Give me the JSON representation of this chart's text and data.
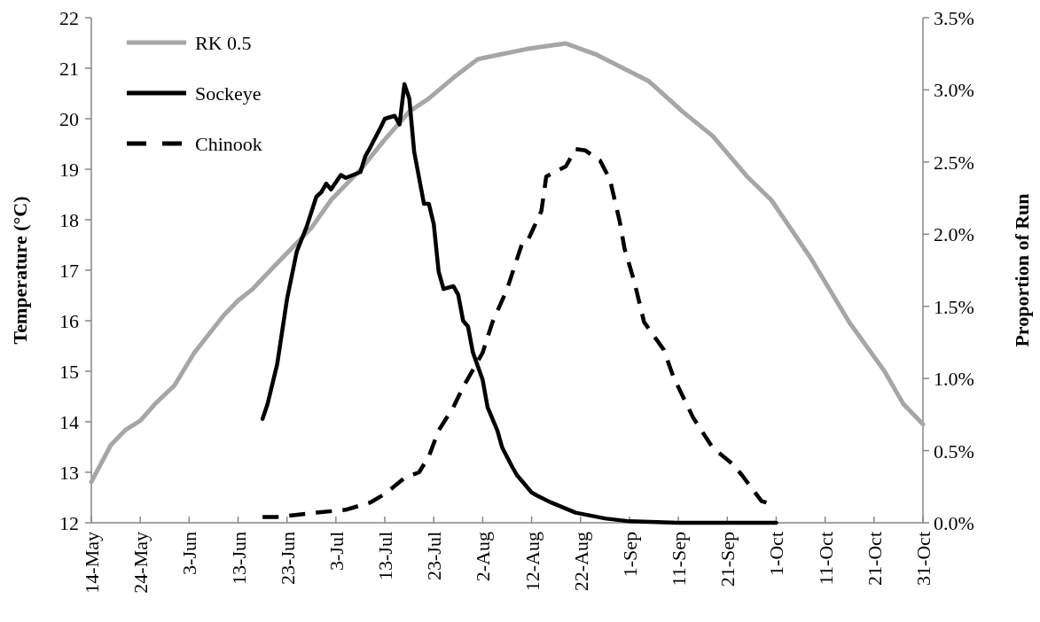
{
  "chart_data": {
    "type": "line",
    "ylabel": "Temperature (°C)",
    "y2label": "Proportion of Run",
    "xlim": [
      "--05-14",
      "--10-31"
    ],
    "xticks": [
      {
        "value": "--05-14",
        "label": "14-May"
      },
      {
        "value": "--05-24",
        "label": "24-May"
      },
      {
        "value": "--06-03",
        "label": "3-Jun"
      },
      {
        "value": "--06-13",
        "label": "13-Jun"
      },
      {
        "value": "--06-23",
        "label": "23-Jun"
      },
      {
        "value": "--07-03",
        "label": "3-Jul"
      },
      {
        "value": "--07-13",
        "label": "13-Jul"
      },
      {
        "value": "--07-23",
        "label": "23-Jul"
      },
      {
        "value": "--08-02",
        "label": "2-Aug"
      },
      {
        "value": "--08-12",
        "label": "12-Aug"
      },
      {
        "value": "--08-22",
        "label": "22-Aug"
      },
      {
        "value": "--09-01",
        "label": "1-Sep"
      },
      {
        "value": "--09-11",
        "label": "11-Sep"
      },
      {
        "value": "--09-21",
        "label": "21-Sep"
      },
      {
        "value": "--10-01",
        "label": "1-Oct"
      },
      {
        "value": "--10-11",
        "label": "11-Oct"
      },
      {
        "value": "--10-21",
        "label": "21-Oct"
      },
      {
        "value": "--10-31",
        "label": "31-Oct"
      }
    ],
    "ylim": [
      12,
      22
    ],
    "yticks": [
      12,
      13,
      14,
      15,
      16,
      17,
      18,
      19,
      20,
      21,
      22
    ],
    "y2lim": [
      0,
      3.5
    ],
    "y2ticks": [
      {
        "value": 0,
        "label": "0.0%"
      },
      {
        "value": 0.5,
        "label": "0.5%"
      },
      {
        "value": 1,
        "label": "1.0%"
      },
      {
        "value": 1.5,
        "label": "1.5%"
      },
      {
        "value": 2,
        "label": "2.0%"
      },
      {
        "value": 2.5,
        "label": "2.5%"
      },
      {
        "value": 3,
        "label": "3.0%"
      },
      {
        "value": 3.5,
        "label": "3.5%"
      }
    ],
    "grid": false,
    "legend": "top left",
    "marker": "none",
    "series": [
      {
        "name": "RK 0.5",
        "color": "#a6a6a6",
        "line_style": "solid",
        "x": [
          "--05-14",
          "--05-18",
          "--05-21",
          "--05-24",
          "--05-27",
          "--05-31",
          "--06-04",
          "--06-10",
          "--06-13",
          "--06-16",
          "--06-20",
          "--06-24",
          "--06-28",
          "--07-02",
          "--07-08",
          "--07-13",
          "--07-18",
          "--07-22",
          "--07-27",
          "--08-01",
          "--08-06",
          "--08-11",
          "--08-19",
          "--08-25",
          "--09-05",
          "--09-12",
          "--09-18",
          "--09-25",
          "--09-30",
          "--10-08",
          "--10-16",
          "--10-23",
          "--10-27",
          "--10-31"
        ],
        "values": [
          12.81,
          13.54,
          13.84,
          14.02,
          14.35,
          14.72,
          15.36,
          16.1,
          16.4,
          16.63,
          17.04,
          17.44,
          17.84,
          18.39,
          18.99,
          19.59,
          20.14,
          20.4,
          20.81,
          21.18,
          21.28,
          21.38,
          21.49,
          21.28,
          20.74,
          20.13,
          19.66,
          18.86,
          18.39,
          17.25,
          15.96,
          15.02,
          14.35,
          13.95
        ]
      },
      {
        "name": "Sockeye",
        "color": "#000000",
        "line_style": "solid",
        "axis": "y2",
        "x": [
          "--06-18",
          "--06-19",
          "--06-21",
          "--06-23",
          "--06-25",
          "--06-27",
          "--06-29",
          "--06-30",
          "--07-01",
          "--07-02",
          "--07-04",
          "--07-05",
          "--07-08",
          "--07-09",
          "--07-10",
          "--07-12",
          "--07-13",
          "--07-15",
          "--07-16",
          "--07-17",
          "--07-18",
          "--07-19",
          "--07-21",
          "--07-22",
          "--07-23",
          "--07-24",
          "--07-25",
          "--07-27",
          "--07-28",
          "--07-29",
          "--07-30",
          "--07-31",
          "--08-02",
          "--08-03",
          "--08-05",
          "--08-06",
          "--08-08",
          "--08-09",
          "--08-12",
          "--08-13",
          "--08-16",
          "--08-21",
          "--08-27",
          "--09-01",
          "--09-11",
          "--10-01"
        ],
        "values": [
          0.72,
          0.82,
          1.1,
          1.55,
          1.88,
          2.05,
          2.26,
          2.29,
          2.35,
          2.31,
          2.41,
          2.39,
          2.43,
          2.54,
          2.6,
          2.73,
          2.8,
          2.82,
          2.76,
          3.04,
          2.94,
          2.57,
          2.21,
          2.21,
          2.07,
          1.74,
          1.62,
          1.64,
          1.58,
          1.4,
          1.36,
          1.18,
          0.99,
          0.8,
          0.64,
          0.52,
          0.39,
          0.33,
          0.21,
          0.19,
          0.14,
          0.07,
          0.03,
          0.01,
          0,
          0
        ]
      },
      {
        "name": "Chinook",
        "color": "#000000",
        "line_style": "dashed",
        "axis": "y2",
        "x": [
          "--06-18",
          "--06-21",
          "--06-29",
          "--07-05",
          "--07-10",
          "--07-13",
          "--07-17",
          "--07-20",
          "--07-22",
          "--07-24",
          "--07-27",
          "--07-29",
          "--08-02",
          "--08-04",
          "--08-07",
          "--08-10",
          "--08-11",
          "--08-14",
          "--08-15",
          "--08-19",
          "--08-21",
          "--08-23",
          "--08-26",
          "--08-28",
          "--08-30",
          "--08-31",
          "--09-02",
          "--09-04",
          "--09-08",
          "--09-10",
          "--09-14",
          "--09-18",
          "--09-22",
          "--09-24",
          "--09-28",
          "--09-29"
        ],
        "values": [
          0.04,
          0.04,
          0.07,
          0.09,
          0.14,
          0.2,
          0.31,
          0.35,
          0.46,
          0.64,
          0.8,
          0.94,
          1.18,
          1.39,
          1.62,
          1.93,
          1.94,
          2.16,
          2.4,
          2.47,
          2.59,
          2.58,
          2.51,
          2.38,
          2.09,
          1.9,
          1.67,
          1.39,
          1.2,
          1.01,
          0.73,
          0.52,
          0.41,
          0.33,
          0.15,
          0.14
        ]
      }
    ]
  }
}
